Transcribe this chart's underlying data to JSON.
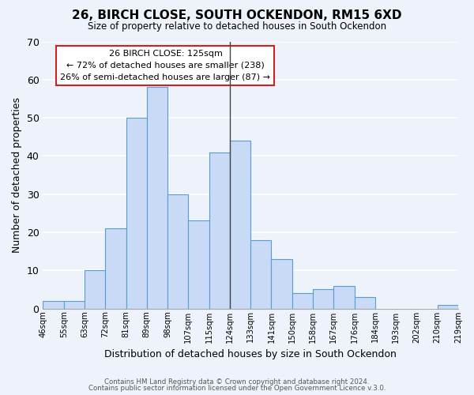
{
  "title": "26, BIRCH CLOSE, SOUTH OCKENDON, RM15 6XD",
  "subtitle": "Size of property relative to detached houses in South Ockendon",
  "bar_color": "#c8daf5",
  "bar_edge_color": "#5a9bd4",
  "xlabel": "Distribution of detached houses by size in South Ockendon",
  "ylabel": "Number of detached properties",
  "bin_labels": [
    "46sqm",
    "55sqm",
    "63sqm",
    "72sqm",
    "81sqm",
    "89sqm",
    "98sqm",
    "107sqm",
    "115sqm",
    "124sqm",
    "133sqm",
    "141sqm",
    "150sqm",
    "158sqm",
    "167sqm",
    "176sqm",
    "184sqm",
    "193sqm",
    "202sqm",
    "210sqm",
    "219sqm"
  ],
  "bar_heights": [
    2,
    2,
    10,
    21,
    50,
    58,
    30,
    23,
    41,
    44,
    18,
    13,
    4,
    5,
    6,
    3,
    0,
    0,
    0,
    1
  ],
  "ylim": [
    0,
    70
  ],
  "yticks": [
    0,
    10,
    20,
    30,
    40,
    50,
    60,
    70
  ],
  "annotation_title": "26 BIRCH CLOSE: 125sqm",
  "annotation_line2": "← 72% of detached houses are smaller (238)",
  "annotation_line3": "26% of semi-detached houses are larger (87) →",
  "vline_bin_index": 9,
  "footer1": "Contains HM Land Registry data © Crown copyright and database right 2024.",
  "footer2": "Contains public sector information licensed under the Open Government Licence v.3.0.",
  "background_color": "#eef2fa"
}
